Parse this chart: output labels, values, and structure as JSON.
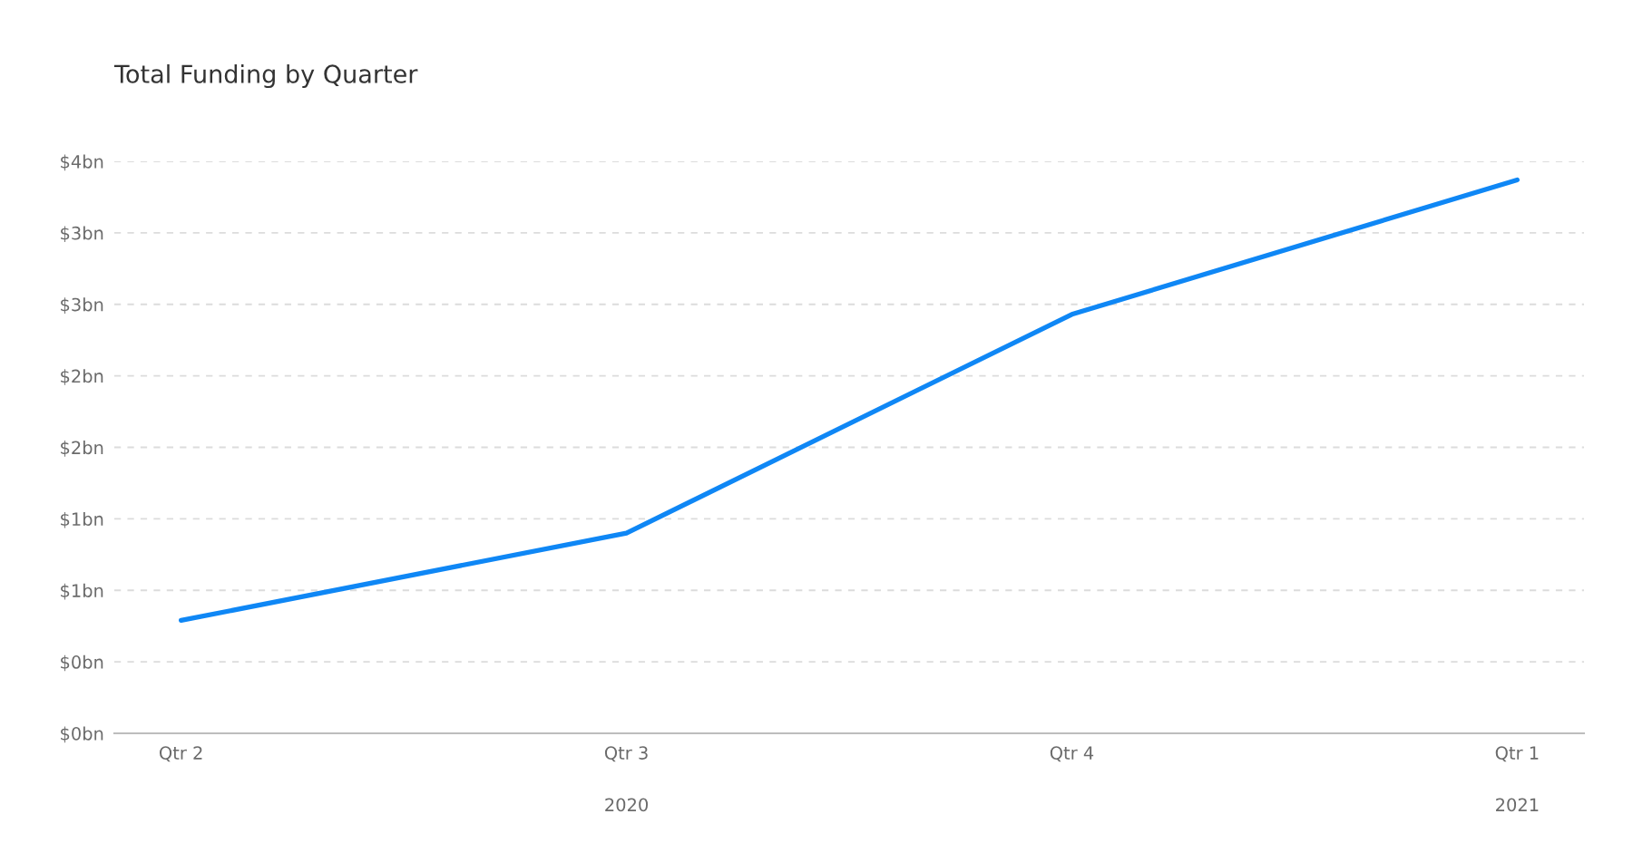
{
  "chart_data": {
    "type": "line",
    "title": "Total Funding by Quarter",
    "categories": [
      "Qtr 2",
      "Qtr 3\n2020",
      "Qtr 4",
      "Qtr 1\n2021"
    ],
    "series": [
      {
        "color": "#0f87f5",
        "values": [
          0.79,
          1.4,
          2.93,
          3.87
        ]
      }
    ],
    "ylim": [
      0,
      4
    ],
    "yticks": [
      {
        "value": 0,
        "label": "$0bn"
      },
      {
        "value": 0.5,
        "label": "$0bn"
      },
      {
        "value": 1,
        "label": "$1bn"
      },
      {
        "value": 1.5,
        "label": "$1bn"
      },
      {
        "value": 2,
        "label": "$2bn"
      },
      {
        "value": 2.5,
        "label": "$2bn"
      },
      {
        "value": 3,
        "label": "$3bn"
      },
      {
        "value": 3.5,
        "label": "$3bn"
      },
      {
        "value": 4,
        "label": "$4bn"
      }
    ],
    "grid": "y",
    "marker": "none",
    "line_style": "solid"
  }
}
